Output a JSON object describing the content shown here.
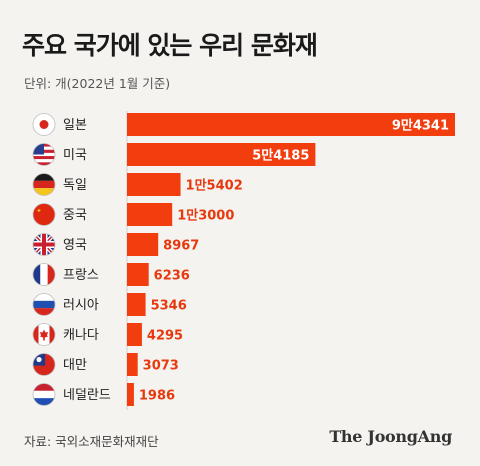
{
  "title": "주요 국가에 있는 우리 문화재",
  "unit_note": "단위: 개(2022년 1월 기준)",
  "source": "자료: 국외소재문화재재단",
  "brand": "The JoongAng",
  "colors": {
    "bar": "#f23d0f",
    "value_text": "#e8380d",
    "value_text_inside": "#ffffff",
    "axis": "#cfcfcf",
    "background": "#f4f3ef"
  },
  "chart_data": {
    "type": "bar",
    "orientation": "horizontal",
    "categories": [
      "일본",
      "미국",
      "독일",
      "중국",
      "영국",
      "프랑스",
      "러시아",
      "캐나다",
      "대만",
      "네덜란드"
    ],
    "flag_icons": [
      "japan-flag-icon",
      "usa-flag-icon",
      "germany-flag-icon",
      "china-flag-icon",
      "uk-flag-icon",
      "france-flag-icon",
      "russia-flag-icon",
      "canada-flag-icon",
      "taiwan-flag-icon",
      "netherlands-flag-icon"
    ],
    "values": [
      94341,
      54185,
      15402,
      13000,
      8967,
      6236,
      5346,
      4295,
      3073,
      1986
    ],
    "value_labels": [
      "9만4341",
      "5만4185",
      "1만5402",
      "1만3000",
      "8967",
      "6236",
      "5346",
      "4295",
      "3073",
      "1986"
    ],
    "xlim": [
      0,
      94341
    ]
  }
}
